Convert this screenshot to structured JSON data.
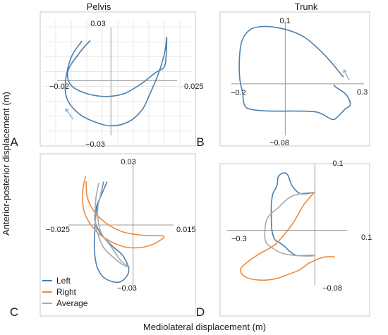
{
  "figure": {
    "ylabel": "Anterior-posterior displacement (m)",
    "xlabel": "Mediolateral displacement (m)"
  },
  "colors": {
    "left": "#4a7fb0",
    "right": "#ee8a3c",
    "average": "#a9a9a9",
    "arrow": "#8fb3d3"
  },
  "legend": {
    "placement": "bottom-left of panel C",
    "entries": [
      {
        "key": "left",
        "label": "Left"
      },
      {
        "key": "right",
        "label": "Right"
      },
      {
        "key": "average",
        "label": "Average"
      }
    ]
  },
  "chart_data": [
    {
      "letter": "A",
      "title": "Pelvis",
      "type": "line",
      "grid": true,
      "xlim": [
        -0.02,
        0.025
      ],
      "ylim": [
        -0.03,
        0.03
      ],
      "tick_labels": {
        "x_min": "−0.02",
        "x_max": "0.025",
        "y_max": "0.03",
        "y_min": "−0.03"
      },
      "series": [
        {
          "key": "left",
          "closed": false,
          "points": [
            [
              -0.0118,
              0.0235
            ],
            [
              -0.016,
              0.014
            ],
            [
              -0.0183,
              0.0
            ],
            [
              -0.0177,
              -0.0108
            ],
            [
              -0.013,
              -0.0195
            ],
            [
              -0.007,
              -0.0242
            ],
            [
              0.0,
              -0.0268
            ],
            [
              0.007,
              -0.0245
            ],
            [
              0.0125,
              -0.0175
            ],
            [
              0.0157,
              -0.008
            ],
            [
              0.0193,
              0.0048
            ],
            [
              0.0218,
              0.0174
            ],
            [
              0.0225,
              0.0258
            ],
            [
              0.0223,
              0.0148
            ],
            [
              0.0214,
              0.008
            ],
            [
              0.018,
              0.0048
            ],
            [
              0.012,
              -0.002
            ],
            [
              0.005,
              -0.0078
            ],
            [
              -0.003,
              -0.0093
            ],
            [
              -0.011,
              -0.007
            ],
            [
              -0.0163,
              -0.0023
            ],
            [
              -0.0173,
              0.006
            ],
            [
              -0.013,
              0.016
            ],
            [
              -0.0085,
              0.0238
            ]
          ]
        }
      ],
      "arrows": [
        {
          "from": [
            -0.0152,
            -0.023
          ],
          "to": [
            -0.0183,
            -0.0167
          ]
        }
      ]
    },
    {
      "letter": "B",
      "title": "Trunk",
      "type": "line",
      "grid": false,
      "xlim": [
        -0.2,
        0.3
      ],
      "ylim": [
        -0.08,
        0.1
      ],
      "tick_labels": {
        "x_min": "−0.2",
        "x_max": "0.3",
        "y_max": "0.1",
        "y_min": "−0.08"
      },
      "series": [
        {
          "key": "left",
          "closed": false,
          "points": [
            [
              0.233,
              0.012
            ],
            [
              0.16,
              0.048
            ],
            [
              0.08,
              0.078
            ],
            [
              0.0,
              0.092
            ],
            [
              -0.08,
              0.097
            ],
            [
              -0.14,
              0.092
            ],
            [
              -0.175,
              0.072
            ],
            [
              -0.185,
              0.04
            ],
            [
              -0.183,
              0.008
            ],
            [
              -0.172,
              -0.015
            ],
            [
              -0.165,
              -0.035
            ],
            [
              -0.14,
              -0.043
            ],
            [
              -0.06,
              -0.046
            ],
            [
              0.04,
              -0.046
            ],
            [
              0.13,
              -0.048
            ],
            [
              0.187,
              -0.06
            ],
            [
              0.21,
              -0.056
            ],
            [
              0.24,
              -0.043
            ],
            [
              0.262,
              -0.035
            ],
            [
              0.245,
              -0.018
            ],
            [
              0.205,
              -0.006
            ],
            [
              0.196,
              -0.002
            ]
          ]
        }
      ],
      "arrows": [
        {
          "from": [
            0.258,
            0.006
          ],
          "to": [
            0.235,
            0.024
          ]
        }
      ]
    },
    {
      "letter": "C",
      "title": "",
      "type": "line",
      "grid": false,
      "xlim": [
        -0.025,
        0.015
      ],
      "ylim": [
        -0.03,
        0.03
      ],
      "tick_labels": {
        "x_min": "−0.025",
        "x_max": "0.015",
        "y_max": "0.03",
        "y_min": "−0.03"
      },
      "series": [
        {
          "key": "left",
          "closed": false,
          "points": [
            [
              -0.0122,
              0.0212
            ],
            [
              -0.0138,
              0.013
            ],
            [
              -0.0152,
              0.007
            ],
            [
              -0.0158,
              -0.002
            ],
            [
              -0.016,
              -0.012
            ],
            [
              -0.0148,
              -0.021
            ],
            [
              -0.0115,
              -0.0265
            ],
            [
              -0.0055,
              -0.0282
            ],
            [
              -0.0018,
              -0.023
            ],
            [
              -0.004,
              -0.0155
            ],
            [
              -0.009,
              -0.01
            ],
            [
              -0.0138,
              -0.0035
            ],
            [
              -0.0158,
              0.0025
            ],
            [
              -0.0153,
              0.0085
            ],
            [
              -0.013,
              0.0152
            ],
            [
              -0.0108,
              0.0212
            ]
          ]
        },
        {
          "key": "right",
          "closed": false,
          "points": [
            [
              -0.0197,
              0.0238
            ],
            [
              -0.0208,
              0.017
            ],
            [
              -0.0205,
              0.008
            ],
            [
              -0.0185,
              0.002
            ],
            [
              -0.0145,
              -0.004
            ],
            [
              -0.009,
              -0.0083
            ],
            [
              -0.003,
              -0.011
            ],
            [
              0.004,
              -0.011
            ],
            [
              0.0095,
              -0.0088
            ],
            [
              0.0127,
              -0.0055
            ],
            [
              0.005,
              -0.0052
            ],
            [
              -0.004,
              -0.0035
            ],
            [
              -0.0113,
              0.001
            ],
            [
              -0.0163,
              0.007
            ],
            [
              -0.019,
              0.014
            ],
            [
              -0.0194,
              0.0215
            ]
          ]
        },
        {
          "key": "average",
          "closed": false,
          "points": [
            [
              -0.0142,
              0.0206
            ],
            [
              -0.0153,
              0.014
            ],
            [
              -0.0157,
              0.0075
            ],
            [
              -0.0155,
              0.001
            ],
            [
              -0.0143,
              -0.0055
            ],
            [
              -0.012,
              -0.0115
            ],
            [
              -0.008,
              -0.0162
            ],
            [
              -0.0045,
              -0.0195
            ],
            [
              -0.0015,
              -0.0207
            ],
            [
              -0.005,
              -0.0178
            ],
            [
              -0.009,
              -0.0108
            ],
            [
              -0.0128,
              -0.0048
            ],
            [
              -0.0145,
              0.0025
            ],
            [
              -0.0145,
              0.0094
            ],
            [
              -0.0132,
              0.0162
            ],
            [
              -0.0125,
              0.0206
            ]
          ]
        }
      ],
      "arrows": []
    },
    {
      "letter": "D",
      "title": "",
      "type": "line",
      "grid": false,
      "xlim": [
        -0.3,
        0.1
      ],
      "ylim": [
        -0.08,
        0.1
      ],
      "tick_labels": {
        "x_min": "−0.3",
        "x_max": "0.1",
        "y_max": "0.1",
        "y_min": "−0.08"
      },
      "series": [
        {
          "key": "left",
          "closed": false,
          "points": [
            [
              0.0,
              0.06
            ],
            [
              -0.05,
              0.058
            ],
            [
              -0.08,
              0.07
            ],
            [
              -0.096,
              0.087
            ],
            [
              -0.11,
              0.091
            ],
            [
              -0.13,
              0.085
            ],
            [
              -0.135,
              0.071
            ],
            [
              -0.15,
              0.057
            ],
            [
              -0.155,
              0.04
            ],
            [
              -0.155,
              0.02
            ],
            [
              -0.153,
              0.0
            ],
            [
              -0.142,
              -0.015
            ],
            [
              -0.125,
              -0.02
            ],
            [
              -0.107,
              -0.026
            ],
            [
              -0.088,
              -0.034
            ],
            [
              -0.065,
              -0.04
            ],
            [
              -0.02,
              -0.04
            ],
            [
              0.0,
              -0.04
            ]
          ]
        },
        {
          "key": "right",
          "closed": false,
          "points": [
            [
              0.0,
              0.061
            ],
            [
              -0.04,
              0.04
            ],
            [
              -0.08,
              0.01
            ],
            [
              -0.14,
              -0.022
            ],
            [
              -0.2,
              -0.038
            ],
            [
              -0.25,
              -0.054
            ],
            [
              -0.265,
              -0.064
            ],
            [
              -0.248,
              -0.074
            ],
            [
              -0.2,
              -0.079
            ],
            [
              -0.14,
              -0.077
            ],
            [
              -0.095,
              -0.07
            ],
            [
              -0.055,
              -0.063
            ],
            [
              -0.02,
              -0.052
            ],
            [
              0.03,
              -0.043
            ],
            [
              0.07,
              -0.042
            ]
          ]
        },
        {
          "key": "average",
          "closed": false,
          "points": [
            [
              0.0,
              0.06
            ],
            [
              -0.05,
              0.058
            ],
            [
              -0.09,
              0.052
            ],
            [
              -0.13,
              0.036
            ],
            [
              -0.168,
              0.02
            ],
            [
              -0.178,
              0.0
            ],
            [
              -0.175,
              -0.018
            ],
            [
              -0.155,
              -0.027
            ],
            [
              -0.12,
              -0.036
            ],
            [
              -0.07,
              -0.04
            ],
            [
              -0.02,
              -0.041
            ],
            [
              0.0,
              -0.04
            ]
          ]
        }
      ],
      "arrows": []
    }
  ]
}
